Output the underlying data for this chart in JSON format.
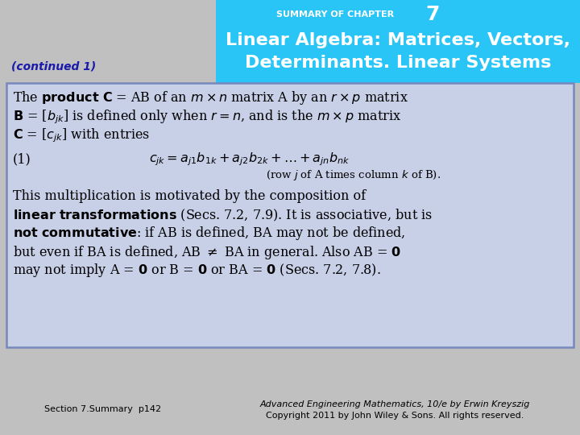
{
  "bg_color": "#c0c0c0",
  "header_bg": "#29c5f6",
  "header_text_color": "#ffffff",
  "header_small": "SUMMARY OF CHAPTER",
  "header_number": "7",
  "continued_color": "#1a1aaa",
  "box_bg": "#c8d0e8",
  "box_border": "#7788bb",
  "footer_left": "Section 7.Summary  p142",
  "footer_right_line1": "Advanced Engineering Mathematics, 10/e by Erwin Kreyszig",
  "footer_right_line2": "Copyright 2011 by John Wiley & Sons. All rights reserved."
}
